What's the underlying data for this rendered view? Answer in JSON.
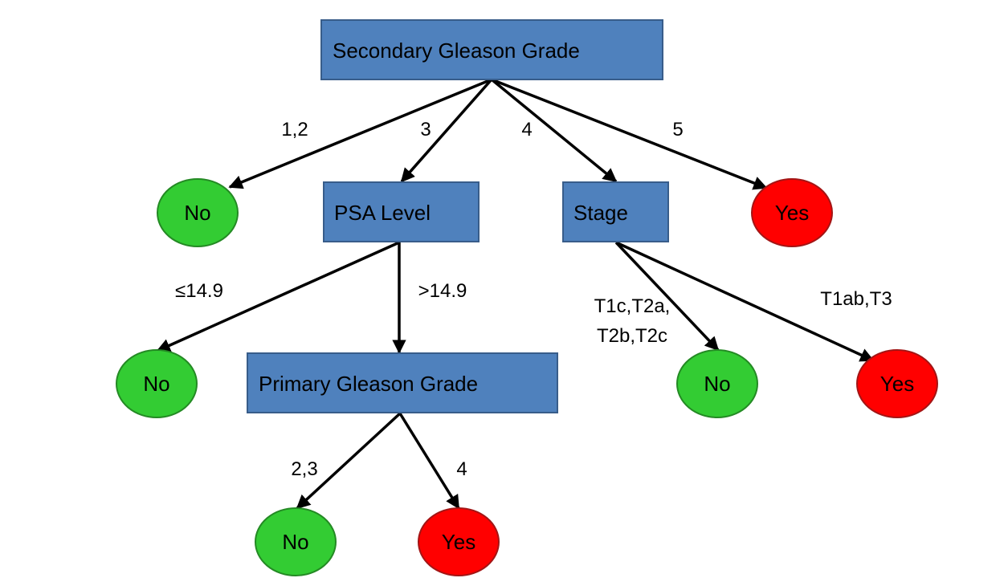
{
  "tree": {
    "root": {
      "label": "Secondary Gleason Grade"
    },
    "psa": {
      "label": "PSA Level"
    },
    "stage": {
      "label": "Stage"
    },
    "primary": {
      "label": "Primary Gleason Grade"
    },
    "leaves": {
      "root_12": "No",
      "root_5": "Yes",
      "psa_low": "No",
      "stage_low": "No",
      "stage_high": "Yes",
      "primary_low": "No",
      "primary_high": "Yes"
    },
    "edges": {
      "root_12": "1,2",
      "root_3": "3",
      "root_4": "4",
      "root_5": "5",
      "psa_low": "≤14.9",
      "psa_high": ">14.9",
      "stage_low_line1": "T1c,T2a,",
      "stage_low_line2": "T2b,T2c",
      "stage_high": "T1ab,T3",
      "primary_low": "2,3",
      "primary_high": "4"
    }
  },
  "colors": {
    "decision_node": "#4f81bd",
    "leaf_no": "#33cc33",
    "leaf_yes": "#ff0000"
  }
}
